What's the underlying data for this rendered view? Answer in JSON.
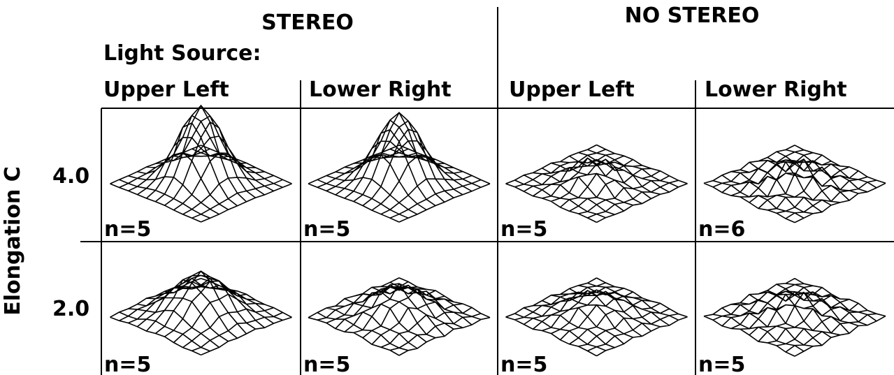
{
  "header": {
    "stereo": "STEREO",
    "no_stereo": "NO STEREO",
    "light_source": "Light Source:"
  },
  "columns": [
    "Upper Left",
    "Lower Right",
    "Upper Left",
    "Lower Right"
  ],
  "y_axis_label": "Elongation C",
  "rows": [
    {
      "label": "4.0",
      "n": [
        "n=5",
        "n=5",
        "n=5",
        "n=6"
      ]
    },
    {
      "label": "2.0",
      "n": [
        "n=5",
        "n=5",
        "n=5",
        "n=5"
      ]
    }
  ]
}
